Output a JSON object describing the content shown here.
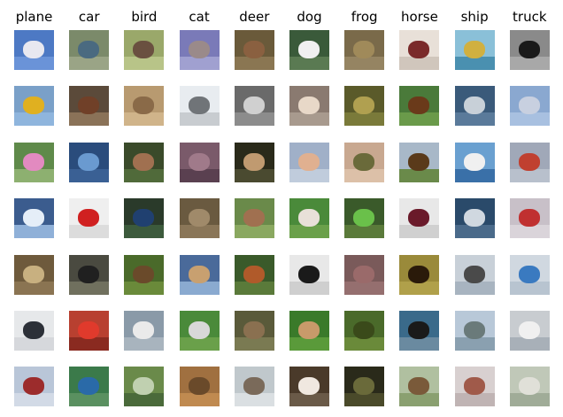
{
  "grid": {
    "columns": [
      {
        "label": "plane",
        "images": [
          {
            "bg": "#4d79c4",
            "fg": "#e8e8f0",
            "band": "#6a93d8"
          },
          {
            "bg": "#7aa0c8",
            "fg": "#e0b020",
            "band": "#8fb5dd"
          },
          {
            "bg": "#5f8a4a",
            "fg": "#e28ac0",
            "band": "#8db070"
          },
          {
            "bg": "#3b5c8e",
            "fg": "#e5eef8",
            "band": "#8fb0d8"
          },
          {
            "bg": "#6e5a3c",
            "fg": "#c8b080",
            "band": "#8a7452"
          },
          {
            "bg": "#e6e8ea",
            "fg": "#2c3038",
            "band": "#d6d8dc"
          },
          {
            "bg": "#b9c6d8",
            "fg": "#9c2c2c",
            "band": "#d2dae6"
          }
        ]
      },
      {
        "label": "car",
        "images": [
          {
            "bg": "#7b8a6a",
            "fg": "#4a6a80",
            "band": "#9aa486"
          },
          {
            "bg": "#5b4a3a",
            "fg": "#704028",
            "band": "#8a7258"
          },
          {
            "bg": "#2a4c7c",
            "fg": "#6a9ad0",
            "band": "#3a6094"
          },
          {
            "bg": "#efefef",
            "fg": "#d02020",
            "band": "#dcdcdc"
          },
          {
            "bg": "#4a4a40",
            "fg": "#202020",
            "band": "#70705e"
          },
          {
            "bg": "#b84030",
            "fg": "#e03a2c",
            "band": "#8a2a20"
          },
          {
            "bg": "#3b7a4a",
            "fg": "#2a6aa8",
            "band": "#5a9060"
          }
        ]
      },
      {
        "label": "bird",
        "images": [
          {
            "bg": "#9aa86a",
            "fg": "#6a5040",
            "band": "#b8c488"
          },
          {
            "bg": "#b89a70",
            "fg": "#8a6a48",
            "band": "#d0b48a"
          },
          {
            "bg": "#3a4a2a",
            "fg": "#a07050",
            "band": "#506a3a"
          },
          {
            "bg": "#2a3a2a",
            "fg": "#204070",
            "band": "#3c5a3c"
          },
          {
            "bg": "#4a6a2a",
            "fg": "#6a4a2a",
            "band": "#6a8a3a"
          },
          {
            "bg": "#8a9aa8",
            "fg": "#eaeaea",
            "band": "#a8b4be"
          },
          {
            "bg": "#6a8a4a",
            "fg": "#c0d0b0",
            "band": "#4a6a3a"
          }
        ]
      },
      {
        "label": "cat",
        "images": [
          {
            "bg": "#7a7ab8",
            "fg": "#9a8a8a",
            "band": "#a0a0d0"
          },
          {
            "bg": "#e8ecf0",
            "fg": "#707478",
            "band": "#c8ccd0"
          },
          {
            "bg": "#7a5a6a",
            "fg": "#a07a8a",
            "band": "#5a4050"
          },
          {
            "bg": "#6a5a40",
            "fg": "#a08a6a",
            "band": "#8a7658"
          },
          {
            "bg": "#4a6a9a",
            "fg": "#c8a070",
            "band": "#8aaad0"
          },
          {
            "bg": "#4a8a3a",
            "fg": "#d8d8d8",
            "band": "#6aa04a"
          },
          {
            "bg": "#a07040",
            "fg": "#6a4a2a",
            "band": "#c08a50"
          }
        ]
      },
      {
        "label": "deer",
        "images": [
          {
            "bg": "#6a5a3a",
            "fg": "#8a6040",
            "band": "#8a7652"
          },
          {
            "bg": "#6a6a6a",
            "fg": "#d0d0d0",
            "band": "#8c8c8c"
          },
          {
            "bg": "#2a2a1a",
            "fg": "#c09a70",
            "band": "#4a4a30"
          },
          {
            "bg": "#6a8a4a",
            "fg": "#a07050",
            "band": "#8aa860"
          },
          {
            "bg": "#3a5a2a",
            "fg": "#b05a2a",
            "band": "#5a7a3a"
          },
          {
            "bg": "#5a5a3a",
            "fg": "#8a7050",
            "band": "#7a7a52"
          },
          {
            "bg": "#c0c8cc",
            "fg": "#7a6a5a",
            "band": "#dadfe2"
          }
        ]
      },
      {
        "label": "dog",
        "images": [
          {
            "bg": "#3a5a3a",
            "fg": "#f0f0f0",
            "band": "#5a7a52"
          },
          {
            "bg": "#8a7a70",
            "fg": "#e8d8c8",
            "band": "#a89a8e"
          },
          {
            "bg": "#a0b0c8",
            "fg": "#e0b090",
            "band": "#c0ccdc"
          },
          {
            "bg": "#4a8a3a",
            "fg": "#e8e0d8",
            "band": "#6aa04a"
          },
          {
            "bg": "#e8e8e8",
            "fg": "#1a1a1a",
            "band": "#cfcfcf"
          },
          {
            "bg": "#3a7a2a",
            "fg": "#c89a6a",
            "band": "#5a9a3a"
          },
          {
            "bg": "#4a3a2a",
            "fg": "#f0e8e0",
            "band": "#6a5a48"
          }
        ]
      },
      {
        "label": "frog",
        "images": [
          {
            "bg": "#7a6a4a",
            "fg": "#a08a5a",
            "band": "#958462"
          },
          {
            "bg": "#5a5a2a",
            "fg": "#b0a050",
            "band": "#7a7a3a"
          },
          {
            "bg": "#c8a890",
            "fg": "#6a6a3a",
            "band": "#dcc0a8"
          },
          {
            "bg": "#3a5a2a",
            "fg": "#6ac04a",
            "band": "#5a7a3a"
          },
          {
            "bg": "#7a5a5a",
            "fg": "#9a6a6a",
            "band": "#956f6f"
          },
          {
            "bg": "#4a6a2a",
            "fg": "#3a4a1a",
            "band": "#6a8a3a"
          },
          {
            "bg": "#2a2a1a",
            "fg": "#6a6a3a",
            "band": "#4a4a2a"
          }
        ]
      },
      {
        "label": "horse",
        "images": [
          {
            "bg": "#e8e0d8",
            "fg": "#7a2a2a",
            "band": "#d0c6bc"
          },
          {
            "bg": "#4a7a3a",
            "fg": "#6a3a1a",
            "band": "#6a9a4a"
          },
          {
            "bg": "#a8b8c8",
            "fg": "#5a3a1a",
            "band": "#6a8a4a"
          },
          {
            "bg": "#e8e8e8",
            "fg": "#6a1a2a",
            "band": "#d0d0d0"
          },
          {
            "bg": "#9a8a3a",
            "fg": "#2a1a0a",
            "band": "#b0a04a"
          },
          {
            "bg": "#3a6a8a",
            "fg": "#1a1a1a",
            "band": "#6a8aa0"
          },
          {
            "bg": "#b0c0a0",
            "fg": "#7a5a3a",
            "band": "#8aa070"
          }
        ]
      },
      {
        "label": "ship",
        "images": [
          {
            "bg": "#8ac0d8",
            "fg": "#d0b040",
            "band": "#4a90b0"
          },
          {
            "bg": "#3a5a7a",
            "fg": "#c8d0d8",
            "band": "#5a7a9a"
          },
          {
            "bg": "#6aa0d0",
            "fg": "#f0f0f0",
            "band": "#3a70a8"
          },
          {
            "bg": "#2a4a6a",
            "fg": "#d0d8e0",
            "band": "#4a6a8a"
          },
          {
            "bg": "#c8d0d8",
            "fg": "#4a4a4a",
            "band": "#a8b4c0"
          },
          {
            "bg": "#b8c8d8",
            "fg": "#6a7a7a",
            "band": "#8aa0b0"
          },
          {
            "bg": "#d8d0d0",
            "fg": "#a05a4a",
            "band": "#c0b4b4"
          }
        ]
      },
      {
        "label": "truck",
        "images": [
          {
            "bg": "#8a8a8a",
            "fg": "#1a1a1a",
            "band": "#a8a8a8"
          },
          {
            "bg": "#8aa8d0",
            "fg": "#c8d0e0",
            "band": "#a8c0e0"
          },
          {
            "bg": "#a0a8b8",
            "fg": "#c04030",
            "band": "#b8c0cc"
          },
          {
            "bg": "#c8c0c8",
            "fg": "#c03030",
            "band": "#dad4da"
          },
          {
            "bg": "#d0d8e0",
            "fg": "#3a7ac0",
            "band": "#b8c4d0"
          },
          {
            "bg": "#c8ccd0",
            "fg": "#f0f0f0",
            "band": "#a8b0b8"
          },
          {
            "bg": "#c0c8b8",
            "fg": "#e0e0d8",
            "band": "#a0ac98"
          }
        ]
      }
    ]
  }
}
